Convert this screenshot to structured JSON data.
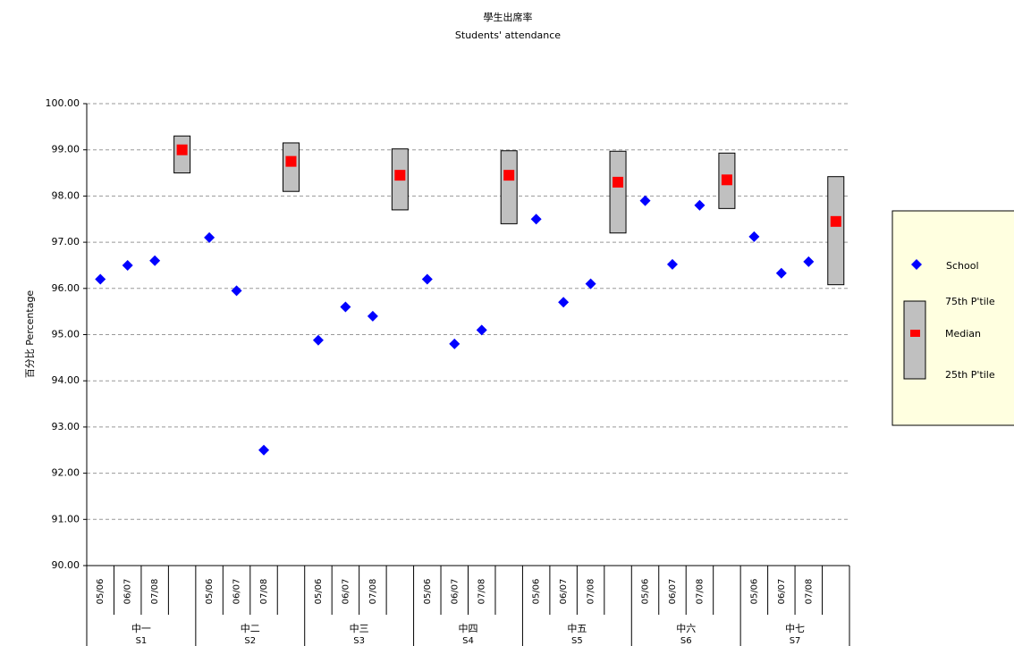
{
  "chart_data": {
    "type": "box-scatter",
    "title": "學生出席率",
    "subtitle": "Students' attendance",
    "y_label": "百分比 Percentage",
    "categories": [
      "05/06",
      "06/07",
      "07/08",
      null,
      "05/06",
      "06/07",
      "07/08",
      null,
      "05/06",
      "06/07",
      "07/08",
      null,
      "05/06",
      "06/07",
      "07/08",
      null,
      "05/06",
      "06/07",
      "07/08",
      null,
      "05/06",
      "06/07",
      "07/08",
      null,
      "05/06",
      "06/07",
      "07/08",
      null
    ],
    "groups": [
      {
        "name": "中一",
        "code": "S1"
      },
      {
        "name": "中二",
        "code": "S2"
      },
      {
        "name": "中三",
        "code": "S3"
      },
      {
        "name": "中四",
        "code": "S4"
      },
      {
        "name": "中五",
        "code": "S5"
      },
      {
        "name": "中六",
        "code": "S6"
      },
      {
        "name": "中七",
        "code": "S7"
      }
    ],
    "series": [
      {
        "name": "School",
        "color": "#0000ff",
        "values": [
          96.2,
          96.5,
          96.6,
          null,
          97.1,
          95.95,
          92.5,
          null,
          94.88,
          95.6,
          95.4,
          null,
          96.2,
          94.8,
          95.1,
          null,
          97.5,
          95.7,
          96.1,
          null,
          97.9,
          96.52,
          97.8,
          null,
          97.12,
          96.33,
          96.58,
          null
        ]
      },
      {
        "name": "75th P'tile",
        "color": "#c0c0c0",
        "values": [
          null,
          null,
          null,
          99.3,
          null,
          null,
          null,
          99.15,
          null,
          null,
          null,
          99.02,
          null,
          null,
          null,
          98.98,
          null,
          null,
          null,
          98.97,
          null,
          null,
          null,
          98.93,
          null,
          null,
          null,
          98.42
        ]
      },
      {
        "name": "Median",
        "color": "#ff0000",
        "values": [
          null,
          null,
          null,
          99.0,
          null,
          null,
          null,
          98.75,
          null,
          null,
          null,
          98.45,
          null,
          null,
          null,
          98.45,
          null,
          null,
          null,
          98.3,
          null,
          null,
          null,
          98.35,
          null,
          null,
          null,
          97.45
        ]
      },
      {
        "name": "25th P'tile",
        "color": "#c0c0c0",
        "values": [
          null,
          null,
          null,
          98.5,
          null,
          null,
          null,
          98.1,
          null,
          null,
          null,
          97.7,
          null,
          null,
          null,
          97.4,
          null,
          null,
          null,
          97.2,
          null,
          null,
          null,
          97.73,
          null,
          null,
          null,
          96.08
        ]
      }
    ],
    "ylim": [
      90,
      100
    ],
    "yticks": [
      {
        "value": 90,
        "label": "90.00"
      },
      {
        "value": 91,
        "label": "91.00"
      },
      {
        "value": 92,
        "label": "92.00"
      },
      {
        "value": 93,
        "label": "93.00"
      },
      {
        "value": 94,
        "label": "94.00"
      },
      {
        "value": 95,
        "label": "95.00"
      },
      {
        "value": 96,
        "label": "96.00"
      },
      {
        "value": 97,
        "label": "97.00"
      },
      {
        "value": 98,
        "label": "98.00"
      },
      {
        "value": 99,
        "label": "99.00"
      },
      {
        "value": 100,
        "label": "100.00"
      }
    ],
    "grid": true
  }
}
